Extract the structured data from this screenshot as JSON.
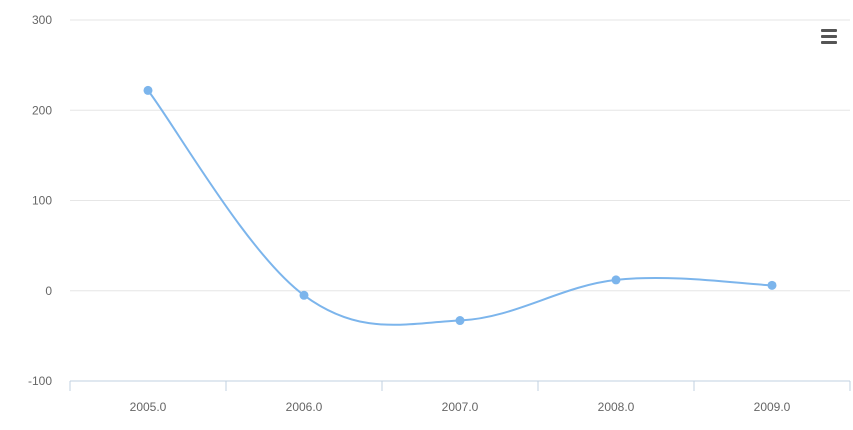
{
  "chart_data": {
    "type": "line",
    "x": [
      "2005.0",
      "2006.0",
      "2007.0",
      "2008.0",
      "2009.0"
    ],
    "series": [
      {
        "values": [
          222,
          -5,
          -33,
          12,
          6
        ],
        "color": "#7cb5ec"
      }
    ],
    "ylim": [
      -100,
      300
    ],
    "yticks": [
      "300",
      "200",
      "100",
      "0",
      "-100"
    ],
    "title": "",
    "xlabel": "",
    "ylabel": "",
    "grid": true,
    "legend": "none",
    "smooth": true
  },
  "menu": {
    "icon": "hamburger-menu-icon"
  }
}
